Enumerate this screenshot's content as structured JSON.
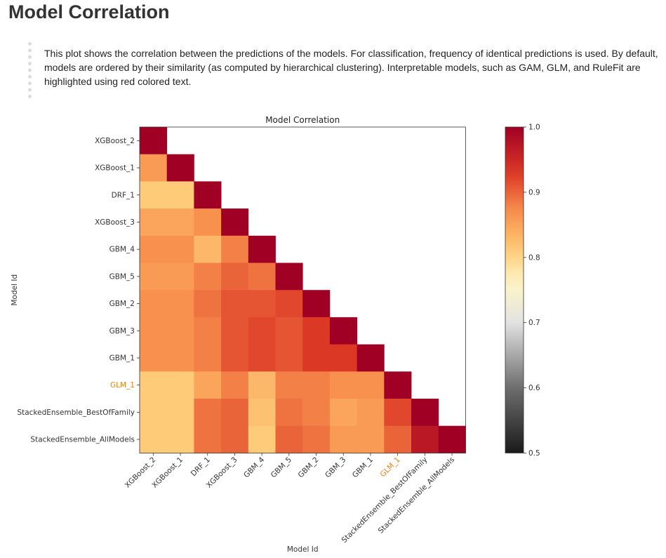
{
  "header": {
    "title": "Model Correlation"
  },
  "description": {
    "text": "This plot shows the correlation between the predictions of the models. For classification, frequency of identical predictions is used. By default, models are ordered by their similarity (as computed by hierarchical clustering). Interpretable models, such as GAM, GLM, and RuleFit are highlighted using red colored text."
  },
  "chart_data": {
    "type": "heatmap",
    "title": "Model Correlation",
    "xlabel": "Model Id",
    "ylabel": "Model Id",
    "models": [
      "XGBoost_2",
      "XGBoost_1",
      "DRF_1",
      "XGBoost_3",
      "GBM_4",
      "GBM_5",
      "GBM_2",
      "GBM_3",
      "GBM_1",
      "GLM_1",
      "StackedEnsemble_BestOfFamily",
      "StackedEnsemble_AllModels"
    ],
    "highlighted_models": [
      "GLM_1"
    ],
    "highlight_color": "#e8821e",
    "colormap": "RdYlGy",
    "color_range": [
      0.5,
      1.0
    ],
    "colorbar_ticks": [
      "0.5",
      "0.6",
      "0.7",
      "0.8",
      "0.9",
      "1.0"
    ],
    "matrix": [
      [
        1.0
      ],
      [
        0.86,
        1.0
      ],
      [
        0.81,
        0.81,
        1.0
      ],
      [
        0.85,
        0.85,
        0.87,
        1.0
      ],
      [
        0.87,
        0.87,
        0.83,
        0.88,
        1.0
      ],
      [
        0.86,
        0.86,
        0.88,
        0.9,
        0.89,
        1.0
      ],
      [
        0.87,
        0.87,
        0.89,
        0.91,
        0.91,
        0.92,
        1.0
      ],
      [
        0.87,
        0.87,
        0.88,
        0.91,
        0.92,
        0.91,
        0.93,
        1.0
      ],
      [
        0.87,
        0.87,
        0.88,
        0.91,
        0.92,
        0.91,
        0.93,
        0.93,
        1.0
      ],
      [
        0.81,
        0.81,
        0.85,
        0.88,
        0.83,
        0.88,
        0.88,
        0.87,
        0.87,
        1.0
      ],
      [
        0.81,
        0.81,
        0.89,
        0.9,
        0.82,
        0.89,
        0.88,
        0.85,
        0.86,
        0.92,
        1.0
      ],
      [
        0.81,
        0.81,
        0.89,
        0.9,
        0.81,
        0.9,
        0.89,
        0.86,
        0.86,
        0.9,
        0.97,
        1.0
      ]
    ],
    "grid": false,
    "legend": "colorbar-right"
  }
}
